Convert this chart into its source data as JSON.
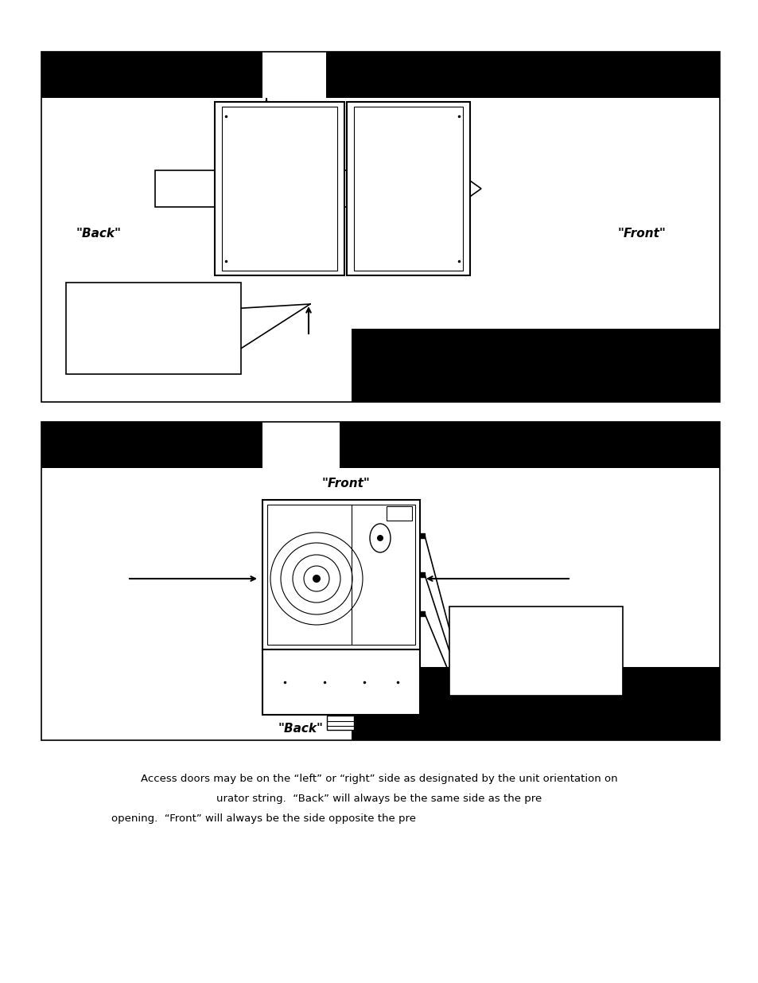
{
  "bg_color": "#ffffff",
  "fig_width": 9.54,
  "fig_height": 12.35,
  "diagram1": {
    "label_back": "\"Back\"",
    "label_front": "\"Front\""
  },
  "diagram2": {
    "label_front": "\"Front\"",
    "label_back": "\"Back\""
  },
  "text_line1": "Access doors may be on the “left” or “right” side as designated by the unit orientation on",
  "text_line2": "urator string.  “Back” will always be the same side as the pre",
  "text_line3": "opening.  “Front” will always be the side opposite the pre"
}
